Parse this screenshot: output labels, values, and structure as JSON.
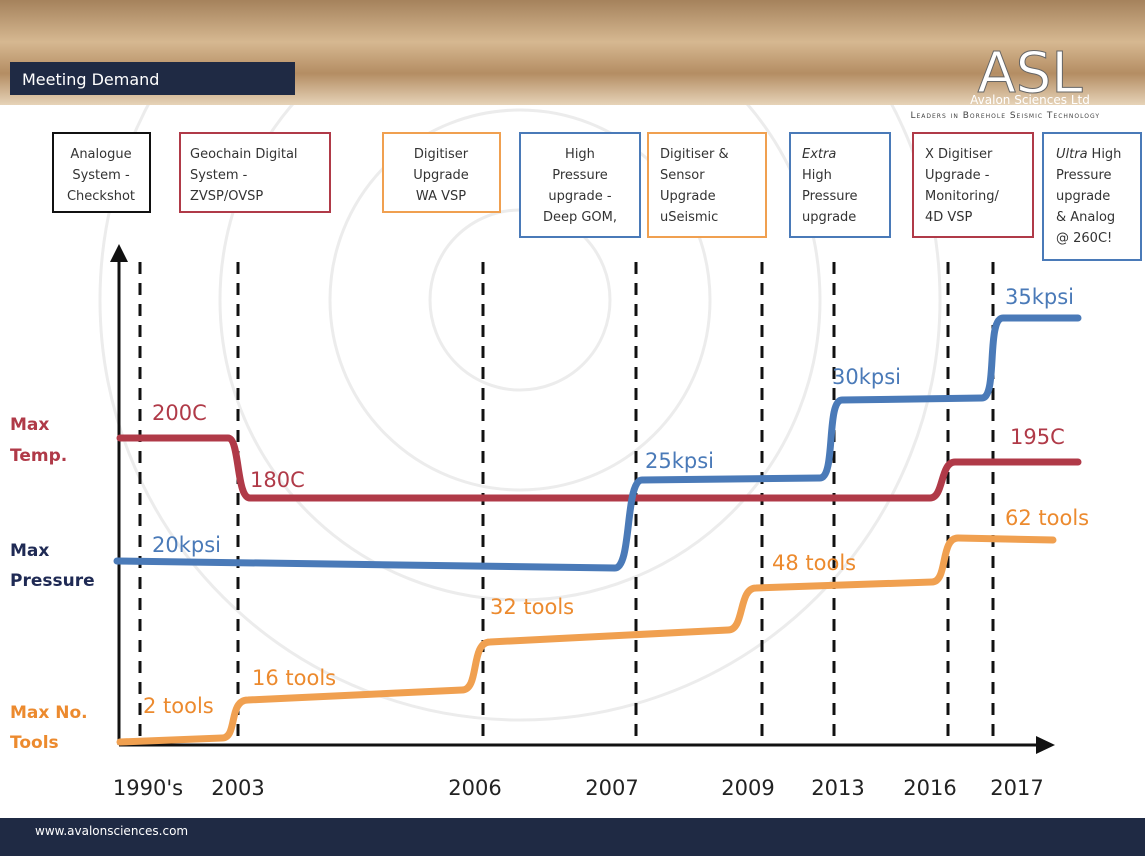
{
  "header": {
    "title": "Meeting Demand",
    "logo": "ASL",
    "company": "Avalon Sciences Ltd",
    "tagline": "Leaders in Borehole Seismic Technology"
  },
  "boxes": [
    {
      "lines": [
        "Analogue",
        "System -",
        "Checkshot"
      ]
    },
    {
      "lines": [
        "Geochain Digital",
        "System -",
        "ZVSP/OVSP"
      ]
    },
    {
      "lines": [
        "Digitiser",
        "Upgrade",
        "WA VSP"
      ]
    },
    {
      "lines": [
        "High",
        "Pressure",
        "upgrade -",
        "Deep GOM,"
      ]
    },
    {
      "lines": [
        "Digitiser &",
        "Sensor",
        "Upgrade",
        "uSeismic"
      ]
    },
    {
      "emphasis": "Extra",
      "lines": [
        "High",
        "Pressure",
        "upgrade"
      ]
    },
    {
      "lines": [
        "X Digitiser",
        "Upgrade -",
        "Monitoring/",
        "4D VSP"
      ]
    },
    {
      "emphasis": "Ultra",
      "lines": [
        "High",
        "Pressure",
        "upgrade",
        "& Analog",
        "@ 260C!"
      ]
    }
  ],
  "rows": [
    {
      "lines": [
        "Max",
        "Temp."
      ],
      "labels": [
        "200C",
        "180C",
        "195C"
      ]
    },
    {
      "lines": [
        "Max",
        "Pressure"
      ],
      "labels": [
        "20kpsi",
        "25kpsi",
        "30kpsi",
        "35kpsi"
      ]
    },
    {
      "lines": [
        "Max No.",
        "Tools"
      ],
      "labels": [
        "2 tools",
        "16 tools",
        "32 tools",
        "48 tools",
        "62 tools"
      ]
    }
  ],
  "years": [
    "1990's",
    "2003",
    "2006",
    "2007",
    "2009",
    "2013",
    "2016",
    "2017"
  ],
  "footer": "www.avalonsciences.com"
}
